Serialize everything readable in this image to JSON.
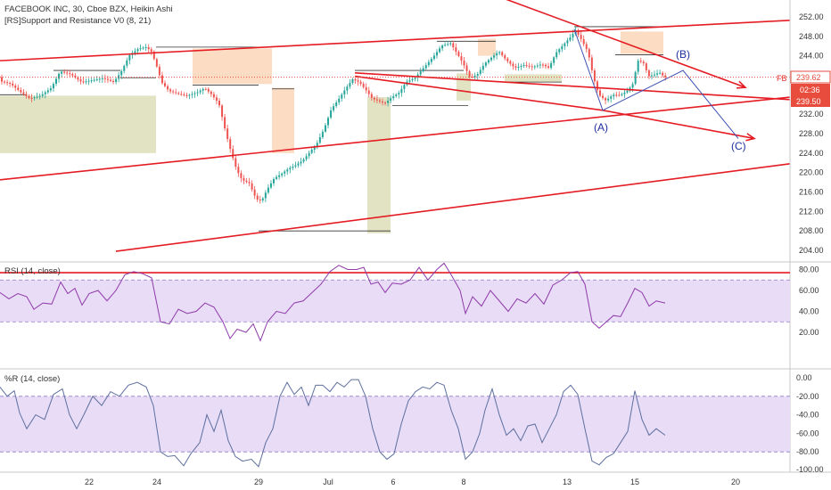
{
  "header": {
    "main_title": "FACEBOOK INC, 30, Cboe BZX, Heikin Ashi",
    "indicator_title": "[RS]Support and Resistance V0 (8, 21)",
    "rsi_title": "RSI (14, close)",
    "wr_title": "%R (14, close)"
  },
  "price_tags": {
    "symbol": "FB",
    "last_price": "239.62",
    "countdown": "02:36",
    "second_price": "239.50"
  },
  "wave_labels": {
    "a": "(A)",
    "b": "(B)",
    "c": "(C)"
  },
  "colors": {
    "bull": "#26a69a",
    "bear": "#ef5350",
    "trendline": "#e51c23",
    "projection": "#3f51b5",
    "rsi_line": "#8e3aa8",
    "rsi_band": "#e9dcf7",
    "wr_line": "#5d6f9e",
    "wr_band": "#e9dcf7",
    "resistance_zone": "#fcd9bd",
    "support_zone": "#dfe0bd",
    "tag_bg": "#e74c3c"
  },
  "chart_data": [
    {
      "type": "candlestick",
      "title": "FACEBOOK INC, 30, Cboe BZX, Heikin Ashi",
      "x_ticks": [
        "22",
        "24",
        "29",
        "Jul",
        "6",
        "8",
        "13",
        "15",
        "20"
      ],
      "y_ticks": [
        "252.00",
        "248.00",
        "244.00",
        "240.00",
        "236.00",
        "232.00",
        "228.00",
        "224.00",
        "220.00",
        "216.00",
        "212.00",
        "208.00",
        "204.00"
      ],
      "ylim": [
        202,
        253
      ],
      "price_path": [
        [
          0,
          238.8
        ],
        [
          12,
          238.3
        ],
        [
          24,
          236.5
        ],
        [
          34,
          235.2
        ],
        [
          46,
          235.8
        ],
        [
          58,
          237.4
        ],
        [
          68,
          240.8
        ],
        [
          80,
          240.2
        ],
        [
          92,
          238.6
        ],
        [
          104,
          239.0
        ],
        [
          116,
          239.4
        ],
        [
          128,
          238.6
        ],
        [
          136,
          240.6
        ],
        [
          146,
          244.2
        ],
        [
          156,
          245.5
        ],
        [
          164,
          245.8
        ],
        [
          170,
          245.0
        ],
        [
          176,
          242.0
        ],
        [
          182,
          238.5
        ],
        [
          190,
          236.8
        ],
        [
          200,
          236.2
        ],
        [
          210,
          235.8
        ],
        [
          222,
          236.5
        ],
        [
          230,
          237.4
        ],
        [
          238,
          236.0
        ],
        [
          246,
          234.2
        ],
        [
          254,
          228.0
        ],
        [
          260,
          224.0
        ],
        [
          266,
          220.5
        ],
        [
          272,
          218.5
        ],
        [
          280,
          217.8
        ],
        [
          288,
          214.5
        ],
        [
          294,
          214.2
        ],
        [
          300,
          216.5
        ],
        [
          308,
          218.8
        ],
        [
          316,
          219.7
        ],
        [
          324,
          220.8
        ],
        [
          332,
          221.5
        ],
        [
          340,
          222.5
        ],
        [
          348,
          224.2
        ],
        [
          356,
          226.0
        ],
        [
          364,
          229.0
        ],
        [
          372,
          233.0
        ],
        [
          380,
          235.0
        ],
        [
          388,
          237.2
        ],
        [
          396,
          239.2
        ],
        [
          404,
          238.5
        ],
        [
          412,
          236.7
        ],
        [
          418,
          235.2
        ],
        [
          424,
          234.8
        ],
        [
          432,
          234.2
        ],
        [
          440,
          235.5
        ],
        [
          448,
          236.4
        ],
        [
          456,
          238.6
        ],
        [
          466,
          239.5
        ],
        [
          476,
          241.6
        ],
        [
          486,
          243.7
        ],
        [
          496,
          246.1
        ],
        [
          506,
          246.6
        ],
        [
          514,
          244.2
        ],
        [
          520,
          242.4
        ],
        [
          528,
          239.4
        ],
        [
          536,
          240.2
        ],
        [
          544,
          242.4
        ],
        [
          552,
          243.7
        ],
        [
          560,
          244.9
        ],
        [
          568,
          243.2
        ],
        [
          578,
          241.5
        ],
        [
          588,
          242.1
        ],
        [
          598,
          241.7
        ],
        [
          608,
          242.3
        ],
        [
          616,
          241.5
        ],
        [
          624,
          244.6
        ],
        [
          632,
          246.2
        ],
        [
          640,
          247.8
        ],
        [
          646,
          249.2
        ],
        [
          652,
          247.5
        ],
        [
          660,
          244.8
        ],
        [
          666,
          239.6
        ],
        [
          672,
          236.0
        ],
        [
          680,
          234.8
        ],
        [
          688,
          236.0
        ],
        [
          696,
          235.9
        ],
        [
          704,
          236.8
        ],
        [
          710,
          238.1
        ],
        [
          716,
          243.0
        ],
        [
          722,
          242.6
        ],
        [
          728,
          239.8
        ],
        [
          734,
          240.1
        ],
        [
          740,
          240.6
        ],
        [
          746,
          239.6
        ]
      ],
      "resistance_zones": [
        {
          "x0": 216,
          "x1": 305,
          "y0": 245.5,
          "y1": 238.2
        },
        {
          "x0": 305,
          "x1": 330,
          "y0": 237.4,
          "y1": 224.0
        },
        {
          "x0": 536,
          "x1": 556,
          "y0": 247.5,
          "y1": 244.0
        },
        {
          "x0": 696,
          "x1": 744,
          "y0": 249.0,
          "y1": 244.4
        }
      ],
      "support_zones": [
        {
          "x0": 0,
          "x1": 175,
          "y0": 235.8,
          "y1": 224.0
        },
        {
          "x0": 412,
          "x1": 438,
          "y0": 235.5,
          "y1": 207.5
        },
        {
          "x0": 512,
          "x1": 528,
          "y0": 240.4,
          "y1": 234.8
        },
        {
          "x0": 566,
          "x1": 630,
          "y0": 240.2,
          "y1": 238.6
        }
      ],
      "trendlines": [
        {
          "x1": 0,
          "y1": 243.0,
          "x2": 886,
          "y2": 251.3
        },
        {
          "x1": 562,
          "y1": 256.0,
          "x2": 836,
          "y2": 237.5
        },
        {
          "x1": 398,
          "y1": 240.5,
          "x2": 886,
          "y2": 235.0
        },
        {
          "x1": 398,
          "y1": 239.8,
          "x2": 676,
          "y2": 232.8
        },
        {
          "x1": 676,
          "y1": 232.8,
          "x2": 846,
          "y2": 227.0
        },
        {
          "x1": 0,
          "y1": 218.5,
          "x2": 886,
          "y2": 235.5
        },
        {
          "x1": 130,
          "y1": 203.8,
          "x2": 886,
          "y2": 221.8
        }
      ],
      "projection": [
        [
          644,
          249.5
        ],
        [
          676,
          232.8
        ],
        [
          766,
          241.0
        ],
        [
          828,
          227.0
        ]
      ],
      "last_price_line": 239.62
    },
    {
      "type": "line",
      "title": "RSI (14, close)",
      "y_ticks": [
        "80.00",
        "60.00",
        "40.00",
        "20.00"
      ],
      "ylim": [
        5,
        90
      ],
      "band": [
        30,
        70
      ],
      "overbought_line": 77,
      "values": [
        [
          0,
          58
        ],
        [
          10,
          52
        ],
        [
          20,
          57
        ],
        [
          30,
          54
        ],
        [
          38,
          42
        ],
        [
          48,
          48
        ],
        [
          58,
          47
        ],
        [
          68,
          68
        ],
        [
          76,
          57
        ],
        [
          84,
          62
        ],
        [
          92,
          46
        ],
        [
          100,
          57
        ],
        [
          110,
          60
        ],
        [
          120,
          50
        ],
        [
          130,
          60
        ],
        [
          140,
          75
        ],
        [
          150,
          78
        ],
        [
          160,
          76
        ],
        [
          170,
          72
        ],
        [
          180,
          30
        ],
        [
          190,
          28
        ],
        [
          200,
          42
        ],
        [
          210,
          38
        ],
        [
          220,
          40
        ],
        [
          230,
          48
        ],
        [
          240,
          44
        ],
        [
          250,
          30
        ],
        [
          258,
          14
        ],
        [
          266,
          23
        ],
        [
          276,
          20
        ],
        [
          284,
          28
        ],
        [
          292,
          12
        ],
        [
          300,
          30
        ],
        [
          310,
          40
        ],
        [
          320,
          38
        ],
        [
          330,
          48
        ],
        [
          340,
          50
        ],
        [
          350,
          58
        ],
        [
          360,
          66
        ],
        [
          370,
          78
        ],
        [
          380,
          84
        ],
        [
          390,
          80
        ],
        [
          400,
          80
        ],
        [
          408,
          82
        ],
        [
          416,
          66
        ],
        [
          424,
          68
        ],
        [
          432,
          58
        ],
        [
          440,
          67
        ],
        [
          450,
          66
        ],
        [
          460,
          70
        ],
        [
          470,
          82
        ],
        [
          480,
          70
        ],
        [
          490,
          80
        ],
        [
          498,
          86
        ],
        [
          506,
          75
        ],
        [
          516,
          60
        ],
        [
          522,
          38
        ],
        [
          530,
          54
        ],
        [
          540,
          45
        ],
        [
          550,
          60
        ],
        [
          560,
          50
        ],
        [
          570,
          40
        ],
        [
          580,
          52
        ],
        [
          590,
          48
        ],
        [
          600,
          57
        ],
        [
          610,
          47
        ],
        [
          620,
          65
        ],
        [
          630,
          70
        ],
        [
          640,
          77
        ],
        [
          648,
          78
        ],
        [
          656,
          66
        ],
        [
          664,
          30
        ],
        [
          672,
          24
        ],
        [
          680,
          30
        ],
        [
          688,
          36
        ],
        [
          696,
          35
        ],
        [
          704,
          48
        ],
        [
          712,
          62
        ],
        [
          720,
          58
        ],
        [
          728,
          45
        ],
        [
          736,
          50
        ],
        [
          746,
          48
        ]
      ]
    },
    {
      "type": "line",
      "title": "%R (14, close)",
      "y_ticks": [
        "0.00",
        "-20.00",
        "-40.00",
        "-60.00",
        "-80.00",
        "-100.00"
      ],
      "ylim": [
        -102,
        8
      ],
      "band": [
        -80,
        -20
      ],
      "values": [
        [
          0,
          -10
        ],
        [
          8,
          -20
        ],
        [
          16,
          -14
        ],
        [
          22,
          -38
        ],
        [
          30,
          -55
        ],
        [
          40,
          -40
        ],
        [
          50,
          -45
        ],
        [
          60,
          -18
        ],
        [
          70,
          -12
        ],
        [
          78,
          -40
        ],
        [
          86,
          -55
        ],
        [
          94,
          -40
        ],
        [
          104,
          -20
        ],
        [
          114,
          -30
        ],
        [
          124,
          -15
        ],
        [
          134,
          -20
        ],
        [
          144,
          -8
        ],
        [
          154,
          -5
        ],
        [
          164,
          -10
        ],
        [
          172,
          -30
        ],
        [
          180,
          -80
        ],
        [
          188,
          -85
        ],
        [
          196,
          -84
        ],
        [
          206,
          -95
        ],
        [
          214,
          -82
        ],
        [
          224,
          -70
        ],
        [
          232,
          -40
        ],
        [
          240,
          -58
        ],
        [
          248,
          -35
        ],
        [
          256,
          -68
        ],
        [
          264,
          -85
        ],
        [
          272,
          -90
        ],
        [
          282,
          -88
        ],
        [
          290,
          -96
        ],
        [
          298,
          -70
        ],
        [
          306,
          -55
        ],
        [
          314,
          -20
        ],
        [
          322,
          -5
        ],
        [
          330,
          -18
        ],
        [
          338,
          -10
        ],
        [
          346,
          -30
        ],
        [
          354,
          -8
        ],
        [
          362,
          -8
        ],
        [
          370,
          -15
        ],
        [
          378,
          -5
        ],
        [
          386,
          -10
        ],
        [
          394,
          -2
        ],
        [
          402,
          -2
        ],
        [
          410,
          -20
        ],
        [
          418,
          -55
        ],
        [
          426,
          -80
        ],
        [
          434,
          -88
        ],
        [
          442,
          -82
        ],
        [
          450,
          -50
        ],
        [
          458,
          -25
        ],
        [
          466,
          -15
        ],
        [
          474,
          -10
        ],
        [
          482,
          -12
        ],
        [
          490,
          -5
        ],
        [
          498,
          -8
        ],
        [
          506,
          -35
        ],
        [
          514,
          -55
        ],
        [
          522,
          -88
        ],
        [
          530,
          -80
        ],
        [
          538,
          -60
        ],
        [
          544,
          -35
        ],
        [
          552,
          -12
        ],
        [
          560,
          -40
        ],
        [
          568,
          -62
        ],
        [
          576,
          -55
        ],
        [
          584,
          -68
        ],
        [
          592,
          -52
        ],
        [
          600,
          -50
        ],
        [
          608,
          -70
        ],
        [
          616,
          -55
        ],
        [
          624,
          -40
        ],
        [
          632,
          -15
        ],
        [
          640,
          -8
        ],
        [
          648,
          -18
        ],
        [
          656,
          -55
        ],
        [
          664,
          -90
        ],
        [
          672,
          -94
        ],
        [
          680,
          -86
        ],
        [
          688,
          -82
        ],
        [
          696,
          -70
        ],
        [
          704,
          -58
        ],
        [
          712,
          -14
        ],
        [
          720,
          -45
        ],
        [
          728,
          -62
        ],
        [
          736,
          -55
        ],
        [
          746,
          -62
        ]
      ]
    }
  ]
}
